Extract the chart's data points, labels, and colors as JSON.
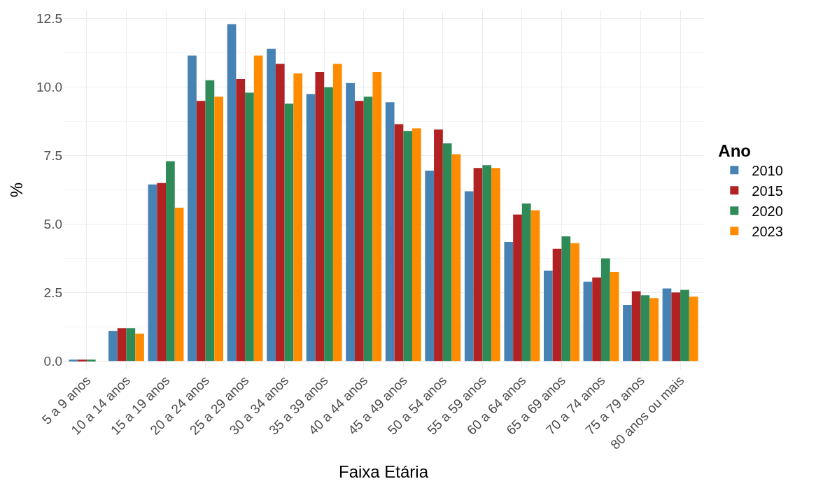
{
  "chart_data": {
    "type": "bar",
    "xlabel": "Faixa Etária",
    "ylabel": "%",
    "legend_title": "Ano",
    "legend": "right",
    "grid": true,
    "categories": [
      "5 a 9 anos",
      "10 a 14 anos",
      "15 a 19 anos",
      "20 a 24 anos",
      "25 a 29 anos",
      "30 a 34 anos",
      "35 a 39 anos",
      "40 a 44 anos",
      "45 a 49 anos",
      "50 a 54 anos",
      "55 a 59 anos",
      "60 a 64 anos",
      "65 a 69 anos",
      "70 a 74 anos",
      "75 a 79 anos",
      "80 anos ou mais"
    ],
    "ylim": [
      -0.3,
      12.8
    ],
    "yticks": [
      {
        "value": 0,
        "label": "0.0"
      },
      {
        "value": 2.5,
        "label": "2.5"
      },
      {
        "value": 5,
        "label": "5.0"
      },
      {
        "value": 7.5,
        "label": "7.5"
      },
      {
        "value": 10,
        "label": "10.0"
      },
      {
        "value": 12.5,
        "label": "12.5"
      }
    ],
    "series": [
      {
        "name": "2010",
        "color": "#4682b4",
        "values": [
          0.05,
          1.1,
          6.45,
          11.15,
          12.3,
          11.4,
          9.75,
          10.15,
          9.45,
          6.95,
          6.2,
          4.35,
          3.3,
          2.9,
          2.05,
          2.65
        ]
      },
      {
        "name": "2015",
        "color": "#b22222",
        "values": [
          0.05,
          1.2,
          6.5,
          9.5,
          10.3,
          10.85,
          10.55,
          9.5,
          8.65,
          8.45,
          7.05,
          5.35,
          4.1,
          3.05,
          2.55,
          2.5
        ]
      },
      {
        "name": "2020",
        "color": "#2e8b57",
        "values": [
          0.05,
          1.2,
          7.3,
          10.25,
          9.8,
          9.4,
          10.0,
          9.65,
          8.4,
          7.95,
          7.15,
          5.75,
          4.55,
          3.75,
          2.4,
          2.6
        ]
      },
      {
        "name": "2023",
        "color": "#ff8c00",
        "values": [
          null,
          1.0,
          5.6,
          9.65,
          11.15,
          10.5,
          10.85,
          10.55,
          8.5,
          7.55,
          7.05,
          5.5,
          4.3,
          3.25,
          2.3,
          2.35
        ]
      }
    ]
  }
}
